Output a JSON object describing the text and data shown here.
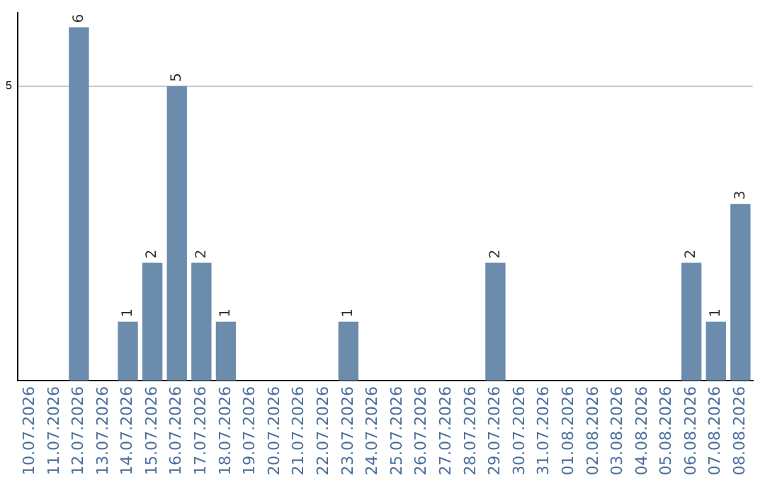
{
  "chart_data": {
    "type": "bar",
    "categories": [
      "10.07.2026",
      "11.07.2026",
      "12.07.2026",
      "13.07.2026",
      "14.07.2026",
      "15.07.2026",
      "16.07.2026",
      "17.07.2026",
      "18.07.2026",
      "19.07.2026",
      "20.07.2026",
      "21.07.2026",
      "22.07.2026",
      "23.07.2026",
      "24.07.2026",
      "25.07.2026",
      "26.07.2026",
      "27.07.2026",
      "28.07.2026",
      "29.07.2026",
      "30.07.2026",
      "31.07.2026",
      "01.08.2026",
      "02.08.2026",
      "03.08.2026",
      "04.08.2026",
      "05.08.2026",
      "06.08.2026",
      "07.08.2026",
      "08.08.2026"
    ],
    "values": [
      0,
      0,
      6,
      0,
      1,
      2,
      5,
      2,
      1,
      0,
      0,
      0,
      0,
      1,
      0,
      0,
      0,
      0,
      0,
      2,
      0,
      0,
      0,
      0,
      0,
      0,
      0,
      2,
      1,
      3
    ],
    "value_labels": [
      null,
      null,
      "6",
      null,
      "1",
      "2",
      "5",
      "2",
      "1",
      null,
      null,
      null,
      null,
      "1",
      null,
      null,
      null,
      null,
      null,
      "2",
      null,
      null,
      null,
      null,
      null,
      null,
      null,
      "2",
      "1",
      "3"
    ],
    "color": "#6b8cad",
    "ylim": [
      0,
      6.25
    ],
    "yticks": [
      5
    ],
    "grid": "y",
    "legend": false
  }
}
